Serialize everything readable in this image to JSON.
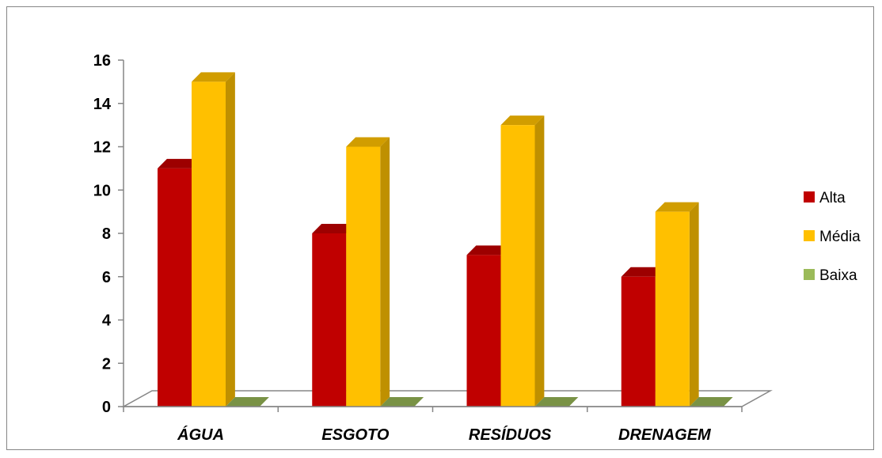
{
  "chart_data": {
    "type": "bar",
    "title": "",
    "xlabel": "",
    "ylabel": "",
    "categories": [
      "ÁGUA",
      "ESGOTO",
      "RESÍDUOS",
      "DRENAGEM"
    ],
    "series": [
      {
        "name": "Alta",
        "values": [
          11,
          8,
          7,
          6
        ],
        "color": "#C00000"
      },
      {
        "name": "Média",
        "values": [
          15,
          12,
          13,
          9
        ],
        "color": "#FFC000"
      },
      {
        "name": "Baixa",
        "values": [
          0,
          0,
          0,
          0
        ],
        "color": "#9BBB59"
      }
    ],
    "ylim": [
      0,
      16
    ],
    "yticks": [
      0,
      2,
      4,
      6,
      8,
      10,
      12,
      14,
      16
    ],
    "grid": false,
    "style": "3d-column",
    "legend": {
      "placement": "right"
    }
  }
}
